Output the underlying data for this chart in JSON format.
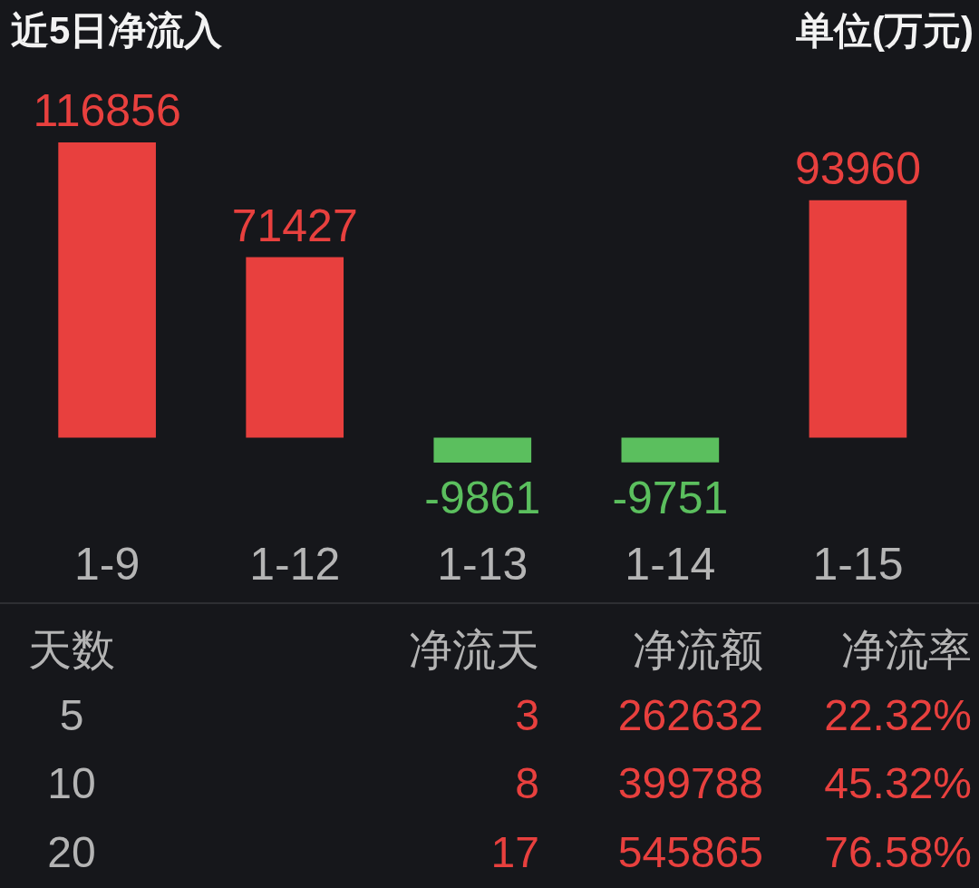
{
  "chart_data": [
    {
      "type": "bar",
      "title": "近5日净流入",
      "annotations": [
        "单位(万元)"
      ],
      "categories": [
        "1-9",
        "1-12",
        "1-13",
        "1-14",
        "1-15"
      ],
      "values": [
        116856,
        71427,
        -9861,
        -9751,
        93960
      ],
      "colors": [
        "#e8403e",
        "#e8403e",
        "#5bbf5e",
        "#5bbf5e",
        "#e8403e"
      ],
      "data_labels": true,
      "tick_labels": "x"
    },
    {
      "type": "other",
      "annotations": [
        "天数",
        "净流天",
        "净流额",
        "净流率",
        "5",
        "3",
        "262632",
        "22.32%",
        "10",
        "8",
        "399788",
        "45.32%",
        "20",
        "17",
        "545865",
        "76.58%"
      ]
    }
  ]
}
